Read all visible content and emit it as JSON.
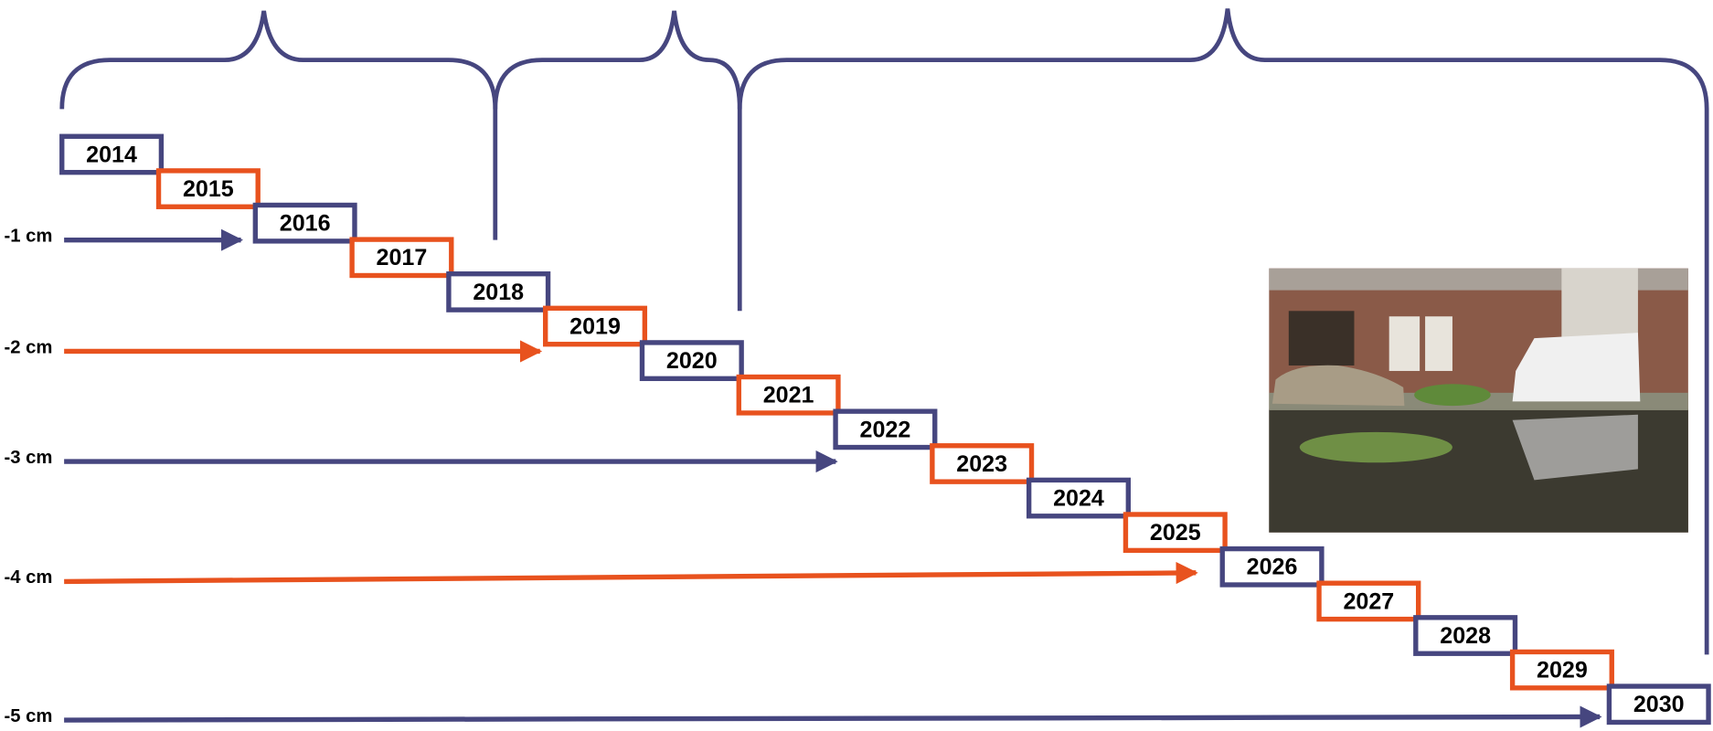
{
  "subsidence_labels": [
    "-1 cm",
    "-2 cm",
    "-3 cm",
    "-4 cm",
    "-5 cm"
  ],
  "years": [
    "2014",
    "2015",
    "2016",
    "2017",
    "2018",
    "2019",
    "2020",
    "2021",
    "2022",
    "2023",
    "2024",
    "2025",
    "2026",
    "2027",
    "2028",
    "2029",
    "2030"
  ]
}
